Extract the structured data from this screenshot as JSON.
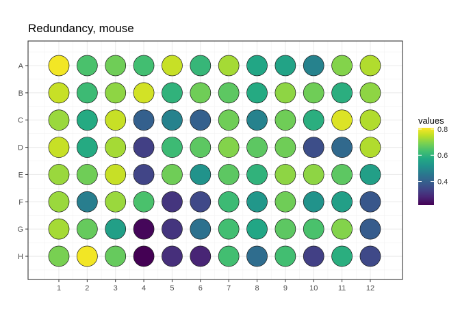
{
  "chart_data": {
    "type": "scatter",
    "title": "Redundancy, mouse",
    "xlabel": "",
    "ylabel": "",
    "columns": [
      "1",
      "2",
      "3",
      "4",
      "5",
      "6",
      "7",
      "8",
      "9",
      "10",
      "11",
      "12"
    ],
    "rows": [
      "A",
      "B",
      "C",
      "D",
      "E",
      "F",
      "G",
      "H"
    ],
    "values": [
      [
        0.8,
        0.64,
        0.68,
        0.63,
        0.76,
        0.61,
        0.73,
        0.57,
        0.56,
        0.48,
        0.7,
        0.74
      ],
      [
        0.76,
        0.62,
        0.71,
        0.77,
        0.6,
        0.68,
        0.66,
        0.58,
        0.71,
        0.68,
        0.59,
        0.71
      ],
      [
        0.72,
        0.58,
        0.76,
        0.4,
        0.48,
        0.4,
        0.68,
        0.48,
        0.68,
        0.59,
        0.78,
        0.74
      ],
      [
        0.76,
        0.58,
        0.73,
        0.33,
        0.62,
        0.66,
        0.7,
        0.66,
        0.68,
        0.36,
        0.42,
        0.74
      ],
      [
        0.72,
        0.68,
        0.76,
        0.34,
        0.68,
        0.52,
        0.66,
        0.6,
        0.71,
        0.71,
        0.66,
        0.55
      ],
      [
        0.72,
        0.47,
        0.72,
        0.64,
        0.31,
        0.35,
        0.62,
        0.53,
        0.68,
        0.52,
        0.55,
        0.38
      ],
      [
        0.73,
        0.67,
        0.55,
        0.23,
        0.31,
        0.44,
        0.63,
        0.57,
        0.66,
        0.64,
        0.7,
        0.39
      ],
      [
        0.69,
        0.8,
        0.67,
        0.22,
        0.3,
        0.28,
        0.63,
        0.43,
        0.63,
        0.33,
        0.59,
        0.35
      ]
    ],
    "color_scale": "viridis",
    "legend": {
      "title": "values",
      "position": "right",
      "min": 0.22,
      "max": 0.81,
      "ticks": [
        0.4,
        0.6,
        0.8
      ],
      "tick_labels": [
        "0.4",
        "0.6",
        "0.8"
      ]
    },
    "grid": true,
    "theme": "bw"
  }
}
